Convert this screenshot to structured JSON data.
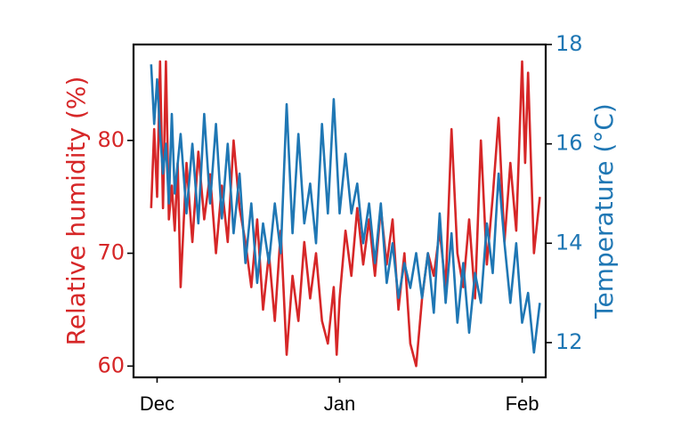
{
  "chart_data": {
    "type": "line",
    "x_range": [
      "2018-11-27",
      "2019-02-05"
    ],
    "x_ticks": [
      {
        "label": "Dec",
        "date": "2018-12-01"
      },
      {
        "label": "Jan",
        "date": "2019-01-01"
      },
      {
        "label": "Feb",
        "date": "2019-02-01"
      }
    ],
    "y_left": {
      "label": "Relative humidity (%)",
      "ylim": [
        59.0,
        88.5
      ],
      "ticks": [
        60,
        70,
        80
      ],
      "color": "#d62728"
    },
    "y_right": {
      "label": "Temperature (°C)",
      "ylim": [
        11.3,
        18.0
      ],
      "ticks": [
        12,
        14,
        16,
        18
      ],
      "color": "#1f77b4"
    },
    "grid": false,
    "legend": "none",
    "series": [
      {
        "axis": "left",
        "color": "#d62728",
        "points": [
          [
            "2018-11-30",
            74
          ],
          [
            "2018-11-30",
            81
          ],
          [
            "2018-12-01",
            75
          ],
          [
            "2018-12-01",
            87
          ],
          [
            "2018-12-02",
            74
          ],
          [
            "2018-12-02",
            87
          ],
          [
            "2018-12-03",
            73
          ],
          [
            "2018-12-03",
            76
          ],
          [
            "2018-12-04",
            72
          ],
          [
            "2018-12-04",
            78
          ],
          [
            "2018-12-05",
            67
          ],
          [
            "2018-12-06",
            78
          ],
          [
            "2018-12-07",
            71
          ],
          [
            "2018-12-08",
            79
          ],
          [
            "2018-12-09",
            73
          ],
          [
            "2018-12-10",
            77
          ],
          [
            "2018-12-11",
            70
          ],
          [
            "2018-12-12",
            76
          ],
          [
            "2018-12-13",
            71
          ],
          [
            "2018-12-14",
            80
          ],
          [
            "2018-12-15",
            74
          ],
          [
            "2018-12-16",
            71
          ],
          [
            "2018-12-17",
            67
          ],
          [
            "2018-12-18",
            73
          ],
          [
            "2018-12-19",
            65
          ],
          [
            "2018-12-20",
            70
          ],
          [
            "2018-12-21",
            64
          ],
          [
            "2018-12-22",
            72
          ],
          [
            "2018-12-23",
            61
          ],
          [
            "2018-12-24",
            68
          ],
          [
            "2018-12-25",
            64
          ],
          [
            "2018-12-26",
            71
          ],
          [
            "2018-12-27",
            66
          ],
          [
            "2018-12-28",
            70
          ],
          [
            "2018-12-29",
            64
          ],
          [
            "2018-12-30",
            62
          ],
          [
            "2018-12-31",
            67
          ],
          [
            "2018-12-31",
            61
          ],
          [
            "2019-01-01",
            66
          ],
          [
            "2019-01-02",
            72
          ],
          [
            "2019-01-03",
            68
          ],
          [
            "2019-01-04",
            74
          ],
          [
            "2019-01-05",
            69
          ],
          [
            "2019-01-06",
            73
          ],
          [
            "2019-01-07",
            68
          ],
          [
            "2019-01-08",
            74
          ],
          [
            "2019-01-09",
            69
          ],
          [
            "2019-01-10",
            73
          ],
          [
            "2019-01-11",
            65
          ],
          [
            "2019-01-12",
            70
          ],
          [
            "2019-01-13",
            62
          ],
          [
            "2019-01-14",
            60
          ],
          [
            "2019-01-15",
            66
          ],
          [
            "2019-01-16",
            70
          ],
          [
            "2019-01-17",
            68
          ],
          [
            "2019-01-18",
            72
          ],
          [
            "2019-01-19",
            67
          ],
          [
            "2019-01-20",
            81
          ],
          [
            "2019-01-21",
            70
          ],
          [
            "2019-01-22",
            67
          ],
          [
            "2019-01-23",
            73
          ],
          [
            "2019-01-24",
            66
          ],
          [
            "2019-01-25",
            80
          ],
          [
            "2019-01-26",
            69
          ],
          [
            "2019-01-27",
            75
          ],
          [
            "2019-01-28",
            82
          ],
          [
            "2019-01-29",
            71
          ],
          [
            "2019-01-30",
            78
          ],
          [
            "2019-01-31",
            72
          ],
          [
            "2019-02-01",
            87
          ],
          [
            "2019-02-01",
            78
          ],
          [
            "2019-02-02",
            86
          ],
          [
            "2019-02-03",
            70
          ],
          [
            "2019-02-04",
            75
          ]
        ]
      },
      {
        "axis": "right",
        "color": "#1f77b4",
        "points": [
          [
            "2018-11-30",
            17.6
          ],
          [
            "2018-11-30",
            16.4
          ],
          [
            "2018-12-01",
            17.3
          ],
          [
            "2018-12-01",
            16.2
          ],
          [
            "2018-12-02",
            15.4
          ],
          [
            "2018-12-02",
            16.0
          ],
          [
            "2018-12-03",
            14.8
          ],
          [
            "2018-12-03",
            16.6
          ],
          [
            "2018-12-04",
            15.0
          ],
          [
            "2018-12-05",
            16.2
          ],
          [
            "2018-12-06",
            14.6
          ],
          [
            "2018-12-07",
            16.0
          ],
          [
            "2018-12-08",
            14.4
          ],
          [
            "2018-12-09",
            16.6
          ],
          [
            "2018-12-10",
            14.8
          ],
          [
            "2018-12-11",
            16.4
          ],
          [
            "2018-12-12",
            14.5
          ],
          [
            "2018-12-13",
            16.0
          ],
          [
            "2018-12-14",
            14.2
          ],
          [
            "2018-12-15",
            15.4
          ],
          [
            "2018-12-16",
            13.6
          ],
          [
            "2018-12-17",
            14.8
          ],
          [
            "2018-12-18",
            13.2
          ],
          [
            "2018-12-19",
            14.4
          ],
          [
            "2018-12-20",
            13.6
          ],
          [
            "2018-12-21",
            14.8
          ],
          [
            "2018-12-22",
            13.8
          ],
          [
            "2018-12-23",
            16.8
          ],
          [
            "2018-12-24",
            14.2
          ],
          [
            "2018-12-25",
            16.2
          ],
          [
            "2018-12-26",
            14.4
          ],
          [
            "2018-12-27",
            15.2
          ],
          [
            "2018-12-28",
            14.0
          ],
          [
            "2018-12-29",
            16.4
          ],
          [
            "2018-12-30",
            14.6
          ],
          [
            "2018-12-31",
            16.9
          ],
          [
            "2019-01-01",
            14.6
          ],
          [
            "2019-01-02",
            15.8
          ],
          [
            "2019-01-03",
            14.6
          ],
          [
            "2019-01-04",
            15.2
          ],
          [
            "2019-01-05",
            14.0
          ],
          [
            "2019-01-06",
            14.8
          ],
          [
            "2019-01-07",
            13.6
          ],
          [
            "2019-01-08",
            14.8
          ],
          [
            "2019-01-09",
            13.2
          ],
          [
            "2019-01-10",
            14.0
          ],
          [
            "2019-01-11",
            12.9
          ],
          [
            "2019-01-12",
            13.6
          ],
          [
            "2019-01-13",
            13.1
          ],
          [
            "2019-01-14",
            13.8
          ],
          [
            "2019-01-15",
            12.9
          ],
          [
            "2019-01-16",
            13.8
          ],
          [
            "2019-01-17",
            12.6
          ],
          [
            "2019-01-18",
            14.6
          ],
          [
            "2019-01-19",
            12.8
          ],
          [
            "2019-01-20",
            14.2
          ],
          [
            "2019-01-21",
            12.4
          ],
          [
            "2019-01-22",
            13.6
          ],
          [
            "2019-01-23",
            12.2
          ],
          [
            "2019-01-24",
            13.4
          ],
          [
            "2019-01-25",
            12.8
          ],
          [
            "2019-01-26",
            14.4
          ],
          [
            "2019-01-27",
            13.4
          ],
          [
            "2019-01-28",
            15.4
          ],
          [
            "2019-01-29",
            14.0
          ],
          [
            "2019-01-30",
            12.8
          ],
          [
            "2019-01-31",
            14.0
          ],
          [
            "2019-02-01",
            12.4
          ],
          [
            "2019-02-02",
            13.0
          ],
          [
            "2019-02-03",
            11.8
          ],
          [
            "2019-02-04",
            12.8
          ]
        ]
      }
    ]
  }
}
